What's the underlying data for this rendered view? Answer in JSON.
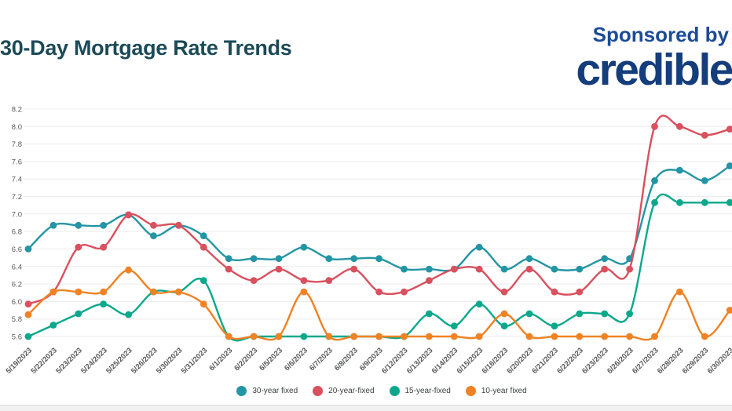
{
  "header": {
    "title": "30-Day Mortgage Rate Trends",
    "sponsored_label": "Sponsored by",
    "sponsor_logo": "credible"
  },
  "colors": {
    "title": "#1c4a57",
    "sponsor": "#143d7c",
    "grid": "#ececec",
    "axis_text": "#58595b",
    "legend_text": "#3c4043"
  },
  "chart_data": {
    "type": "line",
    "title": "30-Day Mortgage Rate Trends",
    "xlabel": "",
    "ylabel": "",
    "grid": true,
    "legend_position": "bottom",
    "ylim": [
      5.5,
      8.3
    ],
    "yticks": [
      8.2,
      8.0,
      7.8,
      7.6,
      7.4,
      7.2,
      7.0,
      6.8,
      6.6,
      6.4,
      6.2,
      6.0,
      5.8,
      5.6
    ],
    "categories": [
      "5/19/2023",
      "5/22/2023",
      "5/23/2023",
      "5/24/2023",
      "5/25/2023",
      "5/26/2023",
      "5/30/2023",
      "5/31/2023",
      "6/1/2023",
      "6/2/2023",
      "6/5/2023",
      "6/6/2023",
      "6/7/2023",
      "6/8/2023",
      "6/9/2023",
      "6/12/2023",
      "6/13/2023",
      "6/14/2023",
      "6/15/2023",
      "6/16/2023",
      "6/20/2023",
      "6/21/2023",
      "6/22/2023",
      "6/23/2023",
      "6/26/2023",
      "6/27/2023",
      "6/28/2023",
      "6/29/2023",
      "6/30/2023"
    ],
    "series": [
      {
        "name": "30-year fixed",
        "color": "#2395a4",
        "values": [
          6.6,
          6.87,
          6.87,
          6.87,
          6.99,
          6.75,
          6.87,
          6.75,
          6.49,
          6.49,
          6.49,
          6.62,
          6.49,
          6.49,
          6.49,
          6.37,
          6.37,
          6.37,
          6.62,
          6.37,
          6.49,
          6.37,
          6.37,
          6.49,
          6.49,
          7.38,
          7.5,
          7.38,
          7.55
        ]
      },
      {
        "name": "20-year-fixed",
        "color": "#d9505e",
        "values": [
          5.97,
          6.11,
          6.62,
          6.62,
          6.99,
          6.87,
          6.87,
          6.62,
          6.37,
          6.24,
          6.37,
          6.24,
          6.24,
          6.37,
          6.11,
          6.11,
          6.24,
          6.37,
          6.37,
          6.11,
          6.37,
          6.11,
          6.11,
          6.37,
          6.37,
          8.0,
          8.0,
          7.9,
          7.97
        ]
      },
      {
        "name": "15-year-fixed",
        "color": "#0ba88b",
        "values": [
          5.6,
          5.73,
          5.86,
          5.97,
          5.85,
          6.11,
          6.11,
          6.24,
          5.6,
          5.6,
          5.6,
          5.6,
          5.6,
          5.6,
          5.6,
          5.6,
          5.86,
          5.72,
          5.97,
          5.72,
          5.86,
          5.72,
          5.86,
          5.86,
          5.86,
          7.13,
          7.13,
          7.13,
          7.13
        ]
      },
      {
        "name": "10-year fixed",
        "color": "#ef8223",
        "values": [
          5.85,
          6.11,
          6.11,
          6.11,
          6.36,
          6.11,
          6.11,
          5.97,
          5.6,
          5.6,
          5.6,
          6.11,
          5.6,
          5.6,
          5.6,
          5.6,
          5.6,
          5.6,
          5.6,
          5.86,
          5.6,
          5.6,
          5.6,
          5.6,
          5.6,
          5.6,
          6.11,
          5.6,
          5.9
        ]
      }
    ]
  }
}
